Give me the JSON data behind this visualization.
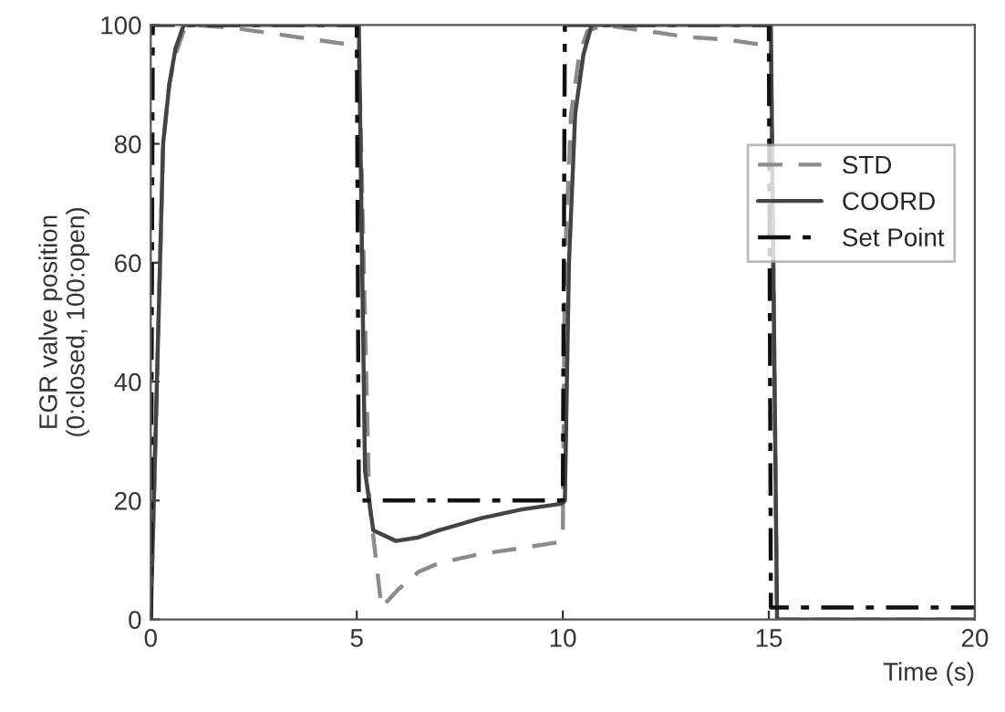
{
  "chart_data": {
    "type": "line",
    "xlabel": "Time (s)",
    "ylabel": "EGR valve position\n(0:closed, 100:open)",
    "xlim": [
      0,
      20
    ],
    "ylim": [
      0,
      100
    ],
    "xticks": [
      0,
      5,
      10,
      15,
      20
    ],
    "yticks": [
      0,
      20,
      40,
      60,
      80,
      100
    ],
    "grid": false,
    "legend": "right",
    "series": [
      {
        "name": "STD",
        "color": "#8c8c8c",
        "line_style": "dashed",
        "x": [
          0,
          0.15,
          0.3,
          0.45,
          0.6,
          0.8,
          1.0,
          2,
          3,
          4,
          5,
          5.05,
          5.3,
          5.6,
          6,
          6.5,
          7,
          8,
          9,
          9.9,
          10,
          10.05,
          10.2,
          10.4,
          10.6,
          11,
          12,
          13,
          14,
          15,
          15.05,
          15.2,
          20
        ],
        "values": [
          0,
          40,
          80,
          90,
          95,
          99,
          100,
          99.5,
          98.5,
          97.5,
          96.5,
          96.5,
          20,
          2,
          5,
          8,
          9.5,
          11,
          12,
          13,
          14,
          60,
          85,
          95,
          99,
          100,
          99,
          98,
          97.5,
          96.5,
          96.5,
          0,
          0
        ]
      },
      {
        "name": "COORD",
        "color": "#444444",
        "line_style": "solid",
        "x": [
          0,
          0.15,
          0.3,
          0.45,
          0.6,
          0.8,
          5,
          5.05,
          5.2,
          5.4,
          5.95,
          6.5,
          7,
          8,
          9,
          10,
          10.05,
          10.15,
          10.3,
          10.5,
          10.7,
          15,
          15.05,
          15.2,
          20
        ],
        "values": [
          0,
          40,
          80,
          90,
          96,
          100,
          100,
          100,
          25,
          15,
          13.2,
          13.8,
          15,
          17,
          18.5,
          19.5,
          20,
          60,
          85,
          95,
          100,
          100,
          100,
          0,
          0
        ]
      },
      {
        "name": "Set Point",
        "color": "#111111",
        "line_style": "dashdot",
        "x": [
          0,
          0.05,
          5,
          5.05,
          10,
          10.05,
          15,
          15.05,
          20
        ],
        "values": [
          0,
          100,
          100,
          20,
          20,
          100,
          100,
          2,
          2
        ]
      }
    ]
  }
}
